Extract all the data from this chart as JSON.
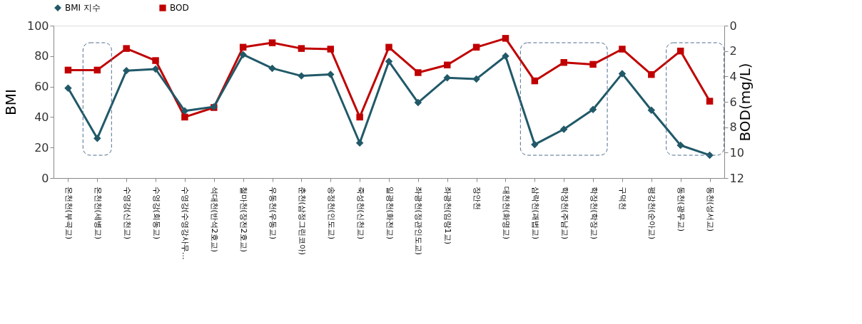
{
  "chart_data": {
    "type": "line",
    "categories": [
      "온천천(부곡교)",
      "온천천(세병교)",
      "수영강(신천교)",
      "수영강(회동교)",
      "수영강(수영강사무…",
      "석대천(반석2호교)",
      "철마천(장전2호교)",
      "우동천(우동교)",
      "춘천(삼정그린코아)",
      "송정천(인도교)",
      "죽성천(신천교)",
      "일광천(화전교)",
      "좌광천(정관인도교)",
      "좌광천(임랑1교)",
      "장안천",
      "대천천(화명교)",
      "삼락천(괘법교)",
      "학장천(주남교)",
      "학장천(학장교)",
      "구덕천",
      "평강천(순아교)",
      "동천(광무교)",
      "동천(성서교)"
    ],
    "series": [
      {
        "name": "BMI 지수",
        "color": "#215968",
        "marker": "diamond",
        "values": [
          59,
          26,
          70.5,
          71.5,
          44,
          46.7,
          81,
          72,
          67,
          68,
          23,
          76.5,
          49.5,
          65.8,
          65,
          80,
          22,
          32,
          45,
          68.5,
          44.5,
          21.5,
          15
        ]
      },
      {
        "name": "BOD",
        "color": "#c00000",
        "marker": "square",
        "axis": "y2",
        "values": [
          3.5,
          3.5,
          1.8,
          2.75,
          7.2,
          6.45,
          1.7,
          1.35,
          1.8,
          1.85,
          7.2,
          1.7,
          3.7,
          3.1,
          1.7,
          1.0,
          4.35,
          2.9,
          3.05,
          1.85,
          3.85,
          2.0,
          5.95
        ]
      }
    ],
    "ylabel": "BMI",
    "y2label": "BOD(mg/L)",
    "ylim": [
      0,
      100
    ],
    "yticks": [
      0,
      20,
      40,
      60,
      80,
      100
    ],
    "y2lim": [
      12,
      0
    ],
    "y2ticks": [
      0,
      2,
      4,
      6,
      8,
      10,
      12
    ],
    "legend": "top",
    "grid": false,
    "line_style": "solid"
  }
}
